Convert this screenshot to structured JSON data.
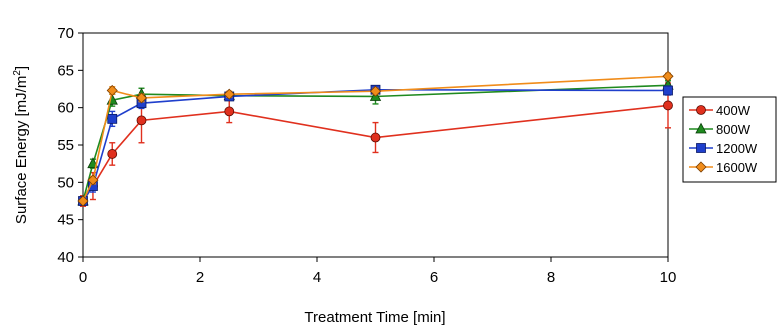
{
  "chart_data": {
    "type": "line",
    "xlabel": "Treatment Time [min]",
    "ylabel_main": "Surface Energy [mJ/m",
    "ylabel_sup": "2",
    "ylabel_close": "]",
    "xlim": [
      0,
      10
    ],
    "ylim": [
      40,
      70
    ],
    "xticks": [
      0,
      2,
      4,
      6,
      8,
      10
    ],
    "yticks": [
      40,
      45,
      50,
      55,
      60,
      65,
      70
    ],
    "grid": true,
    "legend_position": "right",
    "series": [
      {
        "name": "400W",
        "color": "#e0301e",
        "marker": "circle",
        "x": [
          0,
          0.17,
          0.5,
          1,
          2.5,
          5,
          10
        ],
        "y": [
          47.5,
          49.5,
          53.8,
          58.3,
          59.5,
          56.0,
          60.3
        ],
        "err": [
          0.7,
          1.8,
          1.5,
          3.0,
          1.5,
          2.0,
          3.0
        ]
      },
      {
        "name": "800W",
        "color": "#1f8a1f",
        "marker": "triangle",
        "x": [
          0,
          0.17,
          0.5,
          1,
          2.5,
          5,
          10
        ],
        "y": [
          47.5,
          52.5,
          61.0,
          61.8,
          61.6,
          61.5,
          63.0
        ],
        "err": [
          0.4,
          0.6,
          0.8,
          0.8,
          0.5,
          1.0,
          0.6
        ]
      },
      {
        "name": "1200W",
        "color": "#1f3fcc",
        "marker": "square",
        "x": [
          0,
          0.17,
          0.5,
          1,
          2.5,
          5,
          10
        ],
        "y": [
          47.5,
          49.5,
          58.5,
          60.6,
          61.5,
          62.4,
          62.3
        ],
        "err": [
          0.4,
          0.8,
          1.0,
          0.7,
          0.5,
          0.5,
          0.6
        ]
      },
      {
        "name": "1600W",
        "color": "#f08c1a",
        "marker": "diamond",
        "x": [
          0,
          0.17,
          0.5,
          1,
          2.5,
          5,
          10
        ],
        "y": [
          47.5,
          50.3,
          62.3,
          61.3,
          61.8,
          62.2,
          64.2
        ],
        "err": [
          0.3,
          0.5,
          0.5,
          0.5,
          0.4,
          0.4,
          0.4
        ]
      }
    ]
  }
}
